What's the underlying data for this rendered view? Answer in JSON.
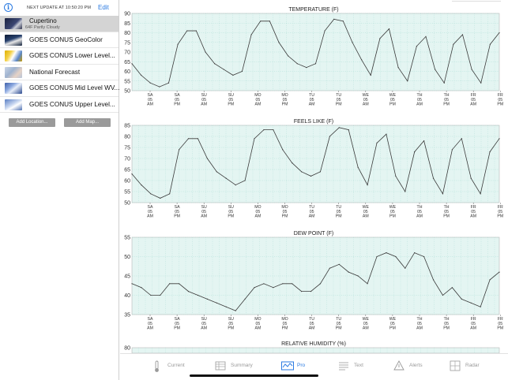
{
  "sidebar": {
    "update_text": "NEXT UPDATE AT 10:50:20 PM",
    "edit_label": "Edit",
    "items": [
      {
        "label": "Cupertino",
        "sublabel": "64F Partly Cloudy",
        "selected": true
      },
      {
        "label": "GOES CONUS GeoColor"
      },
      {
        "label": "GOES CONUS Lower Level..."
      },
      {
        "label": "National Forecast"
      },
      {
        "label": "GOES CONUS Mid Level WV..."
      },
      {
        "label": "GOES CONUS Upper Level..."
      }
    ],
    "add_location_label": "Add Location...",
    "add_map_label": "Add Map..."
  },
  "x_ticks": [
    [
      "SA",
      "05",
      "AM"
    ],
    [
      "SA",
      "05",
      "PM"
    ],
    [
      "SU",
      "05",
      "AM"
    ],
    [
      "SU",
      "05",
      "PM"
    ],
    [
      "MO",
      "05",
      "AM"
    ],
    [
      "MO",
      "05",
      "PM"
    ],
    [
      "TU",
      "05",
      "AM"
    ],
    [
      "TU",
      "05",
      "PM"
    ],
    [
      "WE",
      "05",
      "AM"
    ],
    [
      "WE",
      "05",
      "PM"
    ],
    [
      "TH",
      "05",
      "AM"
    ],
    [
      "TH",
      "05",
      "PM"
    ],
    [
      "FR",
      "05",
      "AM"
    ],
    [
      "FR",
      "05",
      "PM"
    ]
  ],
  "chart_data": [
    {
      "type": "line",
      "title": "TEMPERATURE (F)",
      "ylim": [
        50,
        90
      ],
      "yticks": [
        50,
        55,
        60,
        65,
        70,
        75,
        80,
        85,
        90
      ],
      "values": [
        64,
        58,
        54,
        52,
        54,
        74,
        81,
        81,
        70,
        64,
        61,
        58,
        60,
        79,
        86,
        86,
        75,
        68,
        64,
        62,
        64,
        81,
        87,
        86,
        75,
        66,
        58,
        77,
        82,
        62,
        55,
        73,
        78,
        61,
        54,
        74,
        79,
        61,
        54,
        74,
        80
      ]
    },
    {
      "type": "line",
      "title": "FEELS LIKE (F)",
      "ylim": [
        50,
        85
      ],
      "yticks": [
        50,
        55,
        60,
        65,
        70,
        75,
        80,
        85
      ],
      "values": [
        63,
        58,
        54,
        52,
        54,
        74,
        79,
        79,
        70,
        64,
        61,
        58,
        60,
        79,
        83,
        83,
        74,
        68,
        64,
        62,
        64,
        80,
        84,
        83,
        66,
        58,
        77,
        81,
        62,
        55,
        73,
        78,
        61,
        54,
        74,
        79,
        61,
        54,
        73,
        79
      ]
    },
    {
      "type": "line",
      "title": "DEW POINT (F)",
      "ylim": [
        35,
        55
      ],
      "yticks": [
        35,
        40,
        45,
        50,
        55
      ],
      "values": [
        43,
        42,
        40,
        40,
        43,
        43,
        41,
        40,
        39,
        38,
        37,
        36,
        39,
        42,
        43,
        42,
        43,
        43,
        41,
        41,
        43,
        47,
        48,
        46,
        45,
        43,
        50,
        51,
        50,
        47,
        51,
        50,
        44,
        40,
        42,
        39,
        38,
        37,
        44,
        46
      ]
    },
    {
      "type": "line",
      "title": "RELATIVE HUMIDITY (%)",
      "ylim": [
        0,
        80
      ],
      "yticks": [
        80
      ],
      "values": []
    }
  ],
  "tabs": [
    {
      "label": "Current",
      "icon": "thermometer-icon",
      "active": false
    },
    {
      "label": "Summary",
      "icon": "summary-grid-icon",
      "active": false
    },
    {
      "label": "Pro",
      "icon": "pro-chart-icon",
      "active": true
    },
    {
      "label": "Text",
      "icon": "text-lines-icon",
      "active": false
    },
    {
      "label": "Alerts",
      "icon": "alert-triangle-icon",
      "active": false
    },
    {
      "label": "Radar",
      "icon": "radar-grid-icon",
      "active": false
    }
  ],
  "colors": {
    "accent": "#2a7ae2",
    "plot_bg": "#e4f5f2",
    "grid": "#9fd8cf",
    "line": "#3a3a3a"
  }
}
